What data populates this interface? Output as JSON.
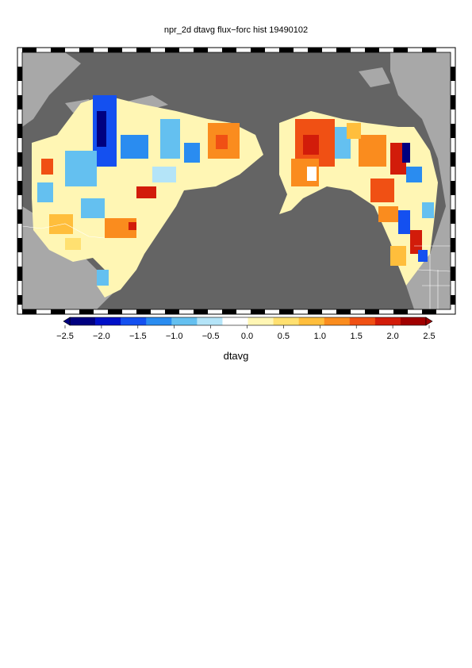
{
  "title": "npr_2d dtavg flux−forc hist 19490102",
  "colorbar": {
    "label": "dtavg",
    "ticks": [
      "−2.5",
      "−2.0",
      "−1.5",
      "−1.0",
      "−0.5",
      "0.0",
      "0.5",
      "1.0",
      "1.5",
      "2.0",
      "2.5"
    ],
    "range": [
      -2.5,
      2.5
    ],
    "colors": [
      "#000080",
      "#0010c8",
      "#1450f0",
      "#2a8cf0",
      "#64c0f0",
      "#b4e4f8",
      "#ffffff",
      "#fff6b4",
      "#ffe070",
      "#ffbe3c",
      "#fa8c1e",
      "#f05014",
      "#d21c0a",
      "#a00000"
    ]
  },
  "map": {
    "ocean_color": "#646464",
    "land_color": "#a8a8a8"
  }
}
